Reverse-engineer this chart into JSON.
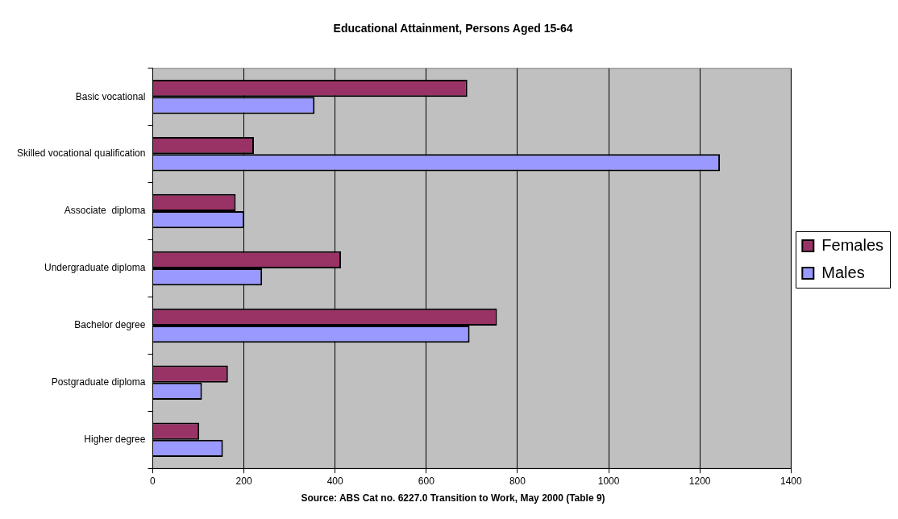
{
  "chart_data": {
    "type": "bar",
    "orientation": "horizontal",
    "title": "Educational Attainment, Persons Aged 15-64",
    "categories": [
      "Basic vocational",
      "Skilled vocational qualification",
      "Associate  diploma",
      "Undergraduate diploma",
      "Bachelor degree",
      "Postgraduate diploma",
      "Higher degree"
    ],
    "series": [
      {
        "name": "Females",
        "color": "#993366",
        "values": [
          690,
          222,
          182,
          413,
          755,
          165,
          102
        ]
      },
      {
        "name": "Males",
        "color": "#9999ff",
        "values": [
          355,
          1244,
          201,
          240,
          695,
          108,
          154
        ]
      }
    ],
    "xlim": [
      0,
      1400
    ],
    "xticks": [
      0,
      200,
      400,
      600,
      800,
      1000,
      1200,
      1400
    ],
    "grid": "x",
    "legend": "right",
    "annotations": [
      "Source: ABS Cat no. 6227.0 Transition to Work, May 2000 (Table 9)"
    ]
  }
}
